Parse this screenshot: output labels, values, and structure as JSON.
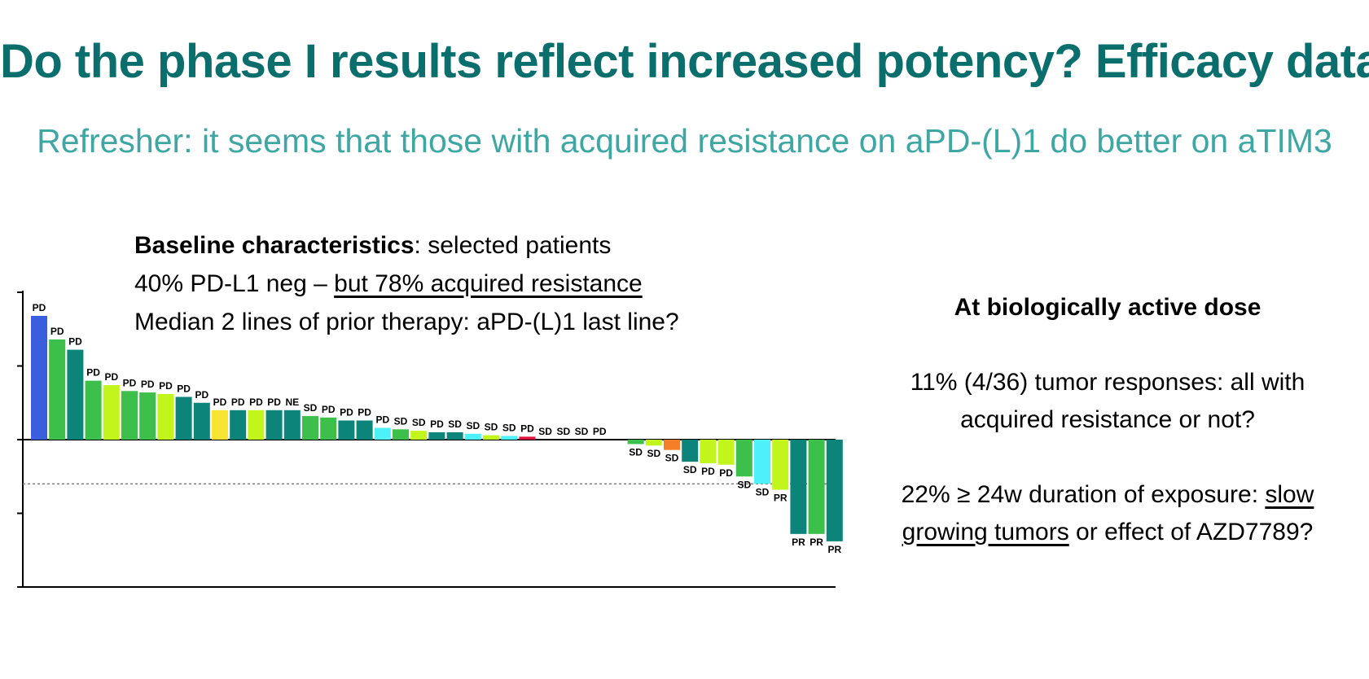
{
  "slide": {
    "title": "Do the phase I results reflect increased potency? Efficacy data",
    "subtitle": "Refresher: it seems that those with acquired resistance on aPD-(L)1 do better on aTIM3"
  },
  "baseline": {
    "line1_bold": "Baseline characteristics",
    "line1_rest": ": selected patients",
    "line2_pre": "40% PD-L1 neg – ",
    "line2_underlined": "but 78% acquired resistance",
    "line3": "Median 2 lines of prior therapy: aPD-(L)1 last line?"
  },
  "right_panel": {
    "heading": "At biologically active dose",
    "response_line1": "11% (4/36) tumor responses: all with",
    "response_line2": "acquired resistance or not?",
    "exposure_pre": "22% ≥ 24w duration of exposure: ",
    "exposure_underlined_1": "slow",
    "exposure_underlined_2": "growing tumors",
    "exposure_post": " or effect of AZD7789?"
  },
  "colors": {
    "title": "#0a6e6c",
    "subtitle": "#3fa7a3",
    "blue": "#3b5fdc",
    "green": "#3cbf4b",
    "teal": "#0c8479",
    "lime": "#c2f51c",
    "yellow": "#f7e331",
    "cyan": "#4cf1fa",
    "orange": "#f57f28",
    "red": "#dc143c"
  },
  "chart_data": {
    "type": "bar",
    "ylim": [
      -100,
      100
    ],
    "reference_line": -30,
    "bars": [
      {
        "value": 84,
        "label": "PD",
        "color": "blue"
      },
      {
        "value": 68,
        "label": "PD",
        "color": "green"
      },
      {
        "value": 61,
        "label": "PD",
        "color": "teal"
      },
      {
        "value": 40,
        "label": "PD",
        "color": "green"
      },
      {
        "value": 37,
        "label": "PD",
        "color": "lime"
      },
      {
        "value": 33,
        "label": "PD",
        "color": "green"
      },
      {
        "value": 32,
        "label": "PD",
        "color": "green"
      },
      {
        "value": 31,
        "label": "PD",
        "color": "lime"
      },
      {
        "value": 29,
        "label": "PD",
        "color": "teal"
      },
      {
        "value": 25,
        "label": "PD",
        "color": "teal"
      },
      {
        "value": 20,
        "label": "PD",
        "color": "yellow"
      },
      {
        "value": 20,
        "label": "PD",
        "color": "teal"
      },
      {
        "value": 20,
        "label": "PD",
        "color": "lime"
      },
      {
        "value": 20,
        "label": "PD",
        "color": "teal"
      },
      {
        "value": 20,
        "label": "NE",
        "color": "teal"
      },
      {
        "value": 16,
        "label": "SD",
        "color": "green"
      },
      {
        "value": 15,
        "label": "PD",
        "color": "green"
      },
      {
        "value": 13,
        "label": "PD",
        "color": "teal"
      },
      {
        "value": 13,
        "label": "PD",
        "color": "teal"
      },
      {
        "value": 8,
        "label": "PD",
        "color": "cyan"
      },
      {
        "value": 7,
        "label": "SD",
        "color": "green"
      },
      {
        "value": 6,
        "label": "SD",
        "color": "lime"
      },
      {
        "value": 5,
        "label": "PD",
        "color": "teal"
      },
      {
        "value": 5,
        "label": "SD",
        "color": "teal"
      },
      {
        "value": 4,
        "label": "SD",
        "color": "cyan"
      },
      {
        "value": 3,
        "label": "SD",
        "color": "lime"
      },
      {
        "value": 2.5,
        "label": "SD",
        "color": "cyan"
      },
      {
        "value": 2,
        "label": "PD",
        "color": "red"
      },
      {
        "value": 0,
        "label": "SD",
        "color": "teal"
      },
      {
        "value": 0,
        "label": "SD",
        "color": "teal"
      },
      {
        "value": 0,
        "label": "SD",
        "color": "teal"
      },
      {
        "value": 0,
        "label": "PD",
        "color": "teal"
      },
      {
        "value": 0,
        "label": "",
        "color": "teal"
      },
      {
        "value": -3,
        "label": "SD",
        "color": "green"
      },
      {
        "value": -4,
        "label": "SD",
        "color": "lime"
      },
      {
        "value": -7,
        "label": "SD",
        "color": "orange"
      },
      {
        "value": -15,
        "label": "SD",
        "color": "teal"
      },
      {
        "value": -16,
        "label": "PD",
        "color": "lime"
      },
      {
        "value": -17,
        "label": "PD",
        "color": "lime"
      },
      {
        "value": -25,
        "label": "SD",
        "color": "green"
      },
      {
        "value": -30,
        "label": "SD",
        "color": "cyan"
      },
      {
        "value": -34,
        "label": "PR",
        "color": "lime"
      },
      {
        "value": -64,
        "label": "PR",
        "color": "teal"
      },
      {
        "value": -64,
        "label": "PR",
        "color": "green"
      },
      {
        "value": -69,
        "label": "PR",
        "color": "teal"
      }
    ]
  }
}
